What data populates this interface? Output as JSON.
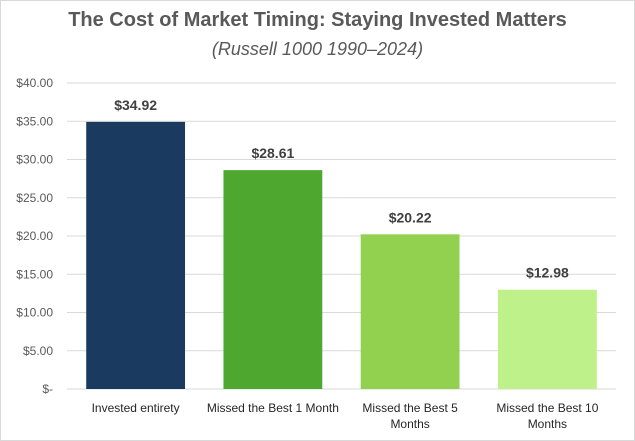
{
  "chart_data": {
    "type": "bar",
    "title": "The Cost of Market Timing: Staying Invested Matters",
    "subtitle": "(Russell 1000 1990–2024)",
    "categories": [
      [
        "Invested entirety"
      ],
      [
        "Missed the Best 1 Month"
      ],
      [
        "Missed the Best 5",
        "Months"
      ],
      [
        "Missed the Best 10",
        "Months"
      ]
    ],
    "values": [
      34.92,
      28.61,
      20.22,
      12.98
    ],
    "data_labels": [
      "$34.92",
      "$28.61",
      "$20.22",
      "$12.98"
    ],
    "bar_colors": [
      "#1a3a5f",
      "#4ea72e",
      "#92d050",
      "#bff18a"
    ],
    "ylim": [
      0,
      40
    ],
    "yticks": [
      0,
      5,
      10,
      15,
      20,
      25,
      30,
      35,
      40
    ],
    "ytick_labels": [
      "$-",
      "$5.00",
      "$10.00",
      "$15.00",
      "$20.00",
      "$25.00",
      "$30.00",
      "$35.00",
      "$40.00"
    ],
    "grid": true,
    "legend": "none"
  }
}
